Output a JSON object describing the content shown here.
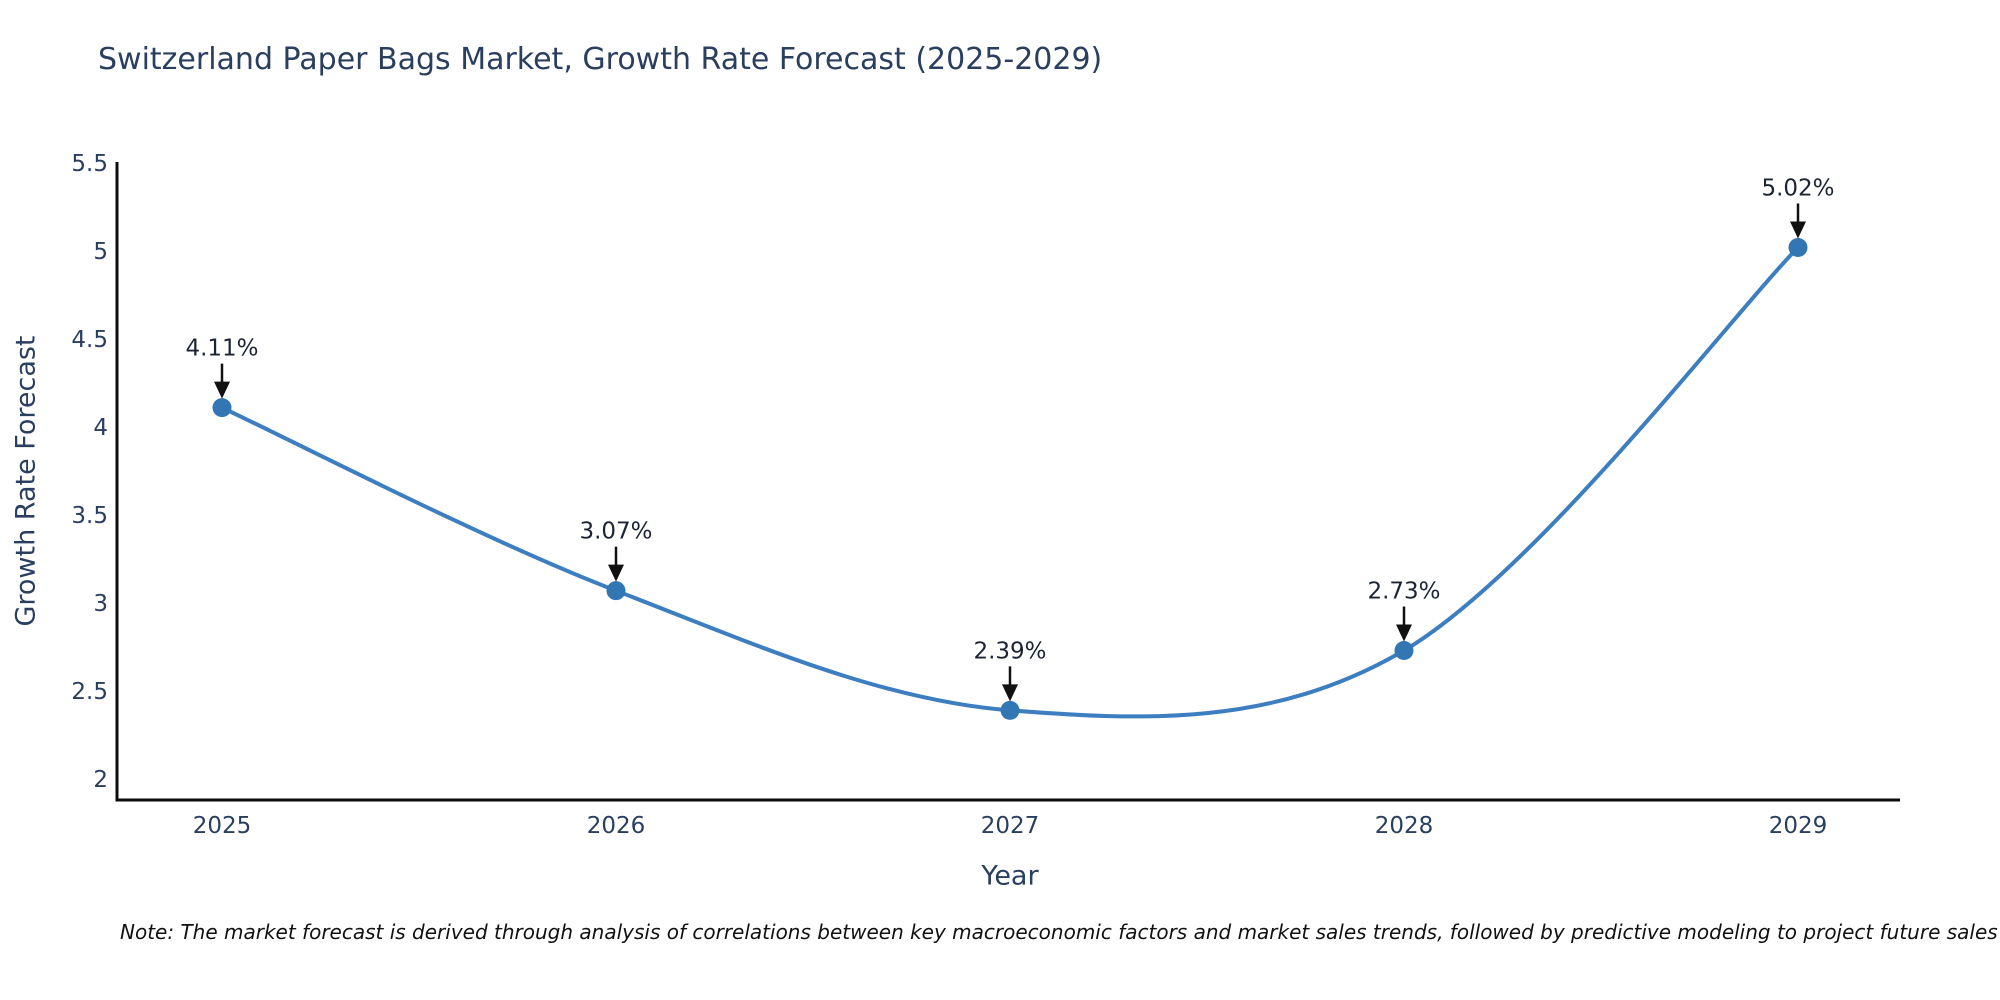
{
  "chart_data": {
    "type": "line",
    "title": "Switzerland Paper Bags Market, Growth Rate Forecast (2025-2029)",
    "xlabel": "Year",
    "ylabel": "Growth Rate Forecast",
    "x": [
      2025,
      2026,
      2027,
      2028,
      2029
    ],
    "x_tick_labels": [
      "2025",
      "2026",
      "2027",
      "2028",
      "2029"
    ],
    "series": [
      {
        "name": "Growth Rate Forecast",
        "values": [
          4.11,
          3.07,
          2.39,
          2.73,
          5.02
        ],
        "point_labels": [
          "4.11%",
          "3.07%",
          "2.39%",
          "2.73%",
          "5.02%"
        ]
      }
    ],
    "y_ticks": [
      2,
      2.5,
      3,
      3.5,
      4,
      4.5,
      5,
      5.5
    ],
    "y_tick_labels": [
      "2",
      "2.5",
      "3",
      "3.5",
      "4",
      "4.5",
      "5",
      "5.5"
    ],
    "ylim": [
      1.88,
      5.51
    ],
    "grid": false,
    "legend": "none",
    "curve": "spline",
    "annotation_style": "down-arrow"
  },
  "note": "Note: The market forecast is derived through analysis of correlations between key macroeconomic factors and market sales trends, followed by predictive modeling to project future sales",
  "colors": {
    "line": "#3c7ebf",
    "marker": "#3276b4",
    "axis": "#0d0d0d",
    "axis_text": "#2a3f5f",
    "annotation_text": "#1c2433",
    "arrow": "#111111",
    "background": "#ffffff"
  }
}
